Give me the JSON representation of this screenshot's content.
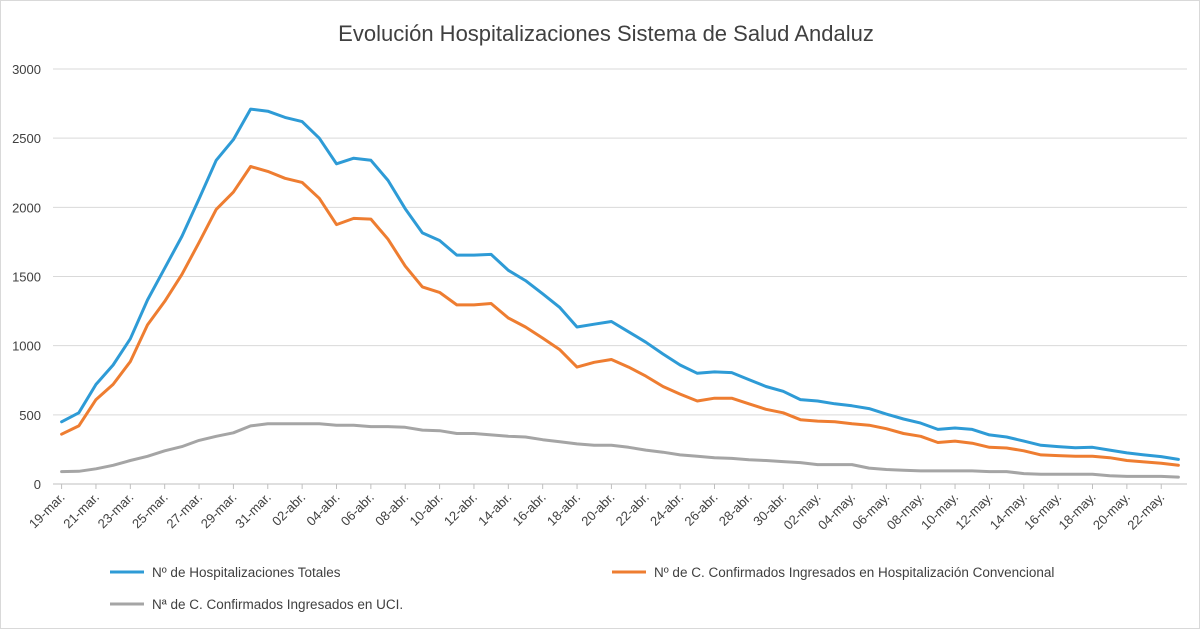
{
  "chart_data": {
    "type": "line",
    "title": "Evolución Hospitalizaciones Sistema de Salud Andaluz",
    "xlabel": "",
    "ylabel": "",
    "ylim": [
      0,
      3000
    ],
    "yticks": [
      0,
      500,
      1000,
      1500,
      2000,
      2500,
      3000
    ],
    "grid": "horizontal",
    "legend_position": "bottom",
    "x": [
      "19-mar.",
      "20-mar.",
      "21-mar.",
      "22-mar.",
      "23-mar.",
      "24-mar.",
      "25-mar.",
      "26-mar.",
      "27-mar.",
      "28-mar.",
      "29-mar.",
      "30-mar.",
      "31-mar.",
      "01-abr.",
      "02-abr.",
      "03-abr.",
      "04-abr.",
      "05-abr.",
      "06-abr.",
      "07-abr.",
      "08-abr.",
      "09-abr.",
      "10-abr.",
      "11-abr.",
      "12-abr.",
      "13-abr.",
      "14-abr.",
      "15-abr.",
      "16-abr.",
      "17-abr.",
      "18-abr.",
      "19-abr.",
      "20-abr.",
      "21-abr.",
      "22-abr.",
      "23-abr.",
      "24-abr.",
      "25-abr.",
      "26-abr.",
      "27-abr.",
      "28-abr.",
      "29-abr.",
      "30-abr.",
      "01-may.",
      "02-may.",
      "03-may.",
      "04-may.",
      "05-may.",
      "06-may.",
      "07-may.",
      "08-may.",
      "09-may.",
      "10-may.",
      "11-may.",
      "12-may.",
      "13-may.",
      "14-may.",
      "15-may.",
      "16-may.",
      "17-may.",
      "18-may.",
      "19-may.",
      "20-may.",
      "21-may.",
      "22-may.",
      "23-may."
    ],
    "xtick_labels": [
      "19-mar.",
      "21-mar.",
      "23-mar.",
      "25-mar.",
      "27-mar.",
      "29-mar.",
      "31-mar.",
      "02-abr.",
      "04-abr.",
      "06-abr.",
      "08-abr.",
      "10-abr.",
      "12-abr.",
      "14-abr.",
      "16-abr.",
      "18-abr.",
      "20-abr.",
      "22-abr.",
      "24-abr.",
      "26-abr.",
      "28-abr.",
      "30-abr.",
      "02-may.",
      "04-may.",
      "06-may.",
      "08-may.",
      "10-may.",
      "12-may.",
      "14-may.",
      "16-may.",
      "18-may.",
      "20-may.",
      "22-may."
    ],
    "series": [
      {
        "name": "Nº de Hospitalizaciones Totales",
        "color": "#2e9bd6",
        "values": [
          450,
          515,
          720,
          860,
          1050,
          1330,
          1560,
          1790,
          2060,
          2340,
          2490,
          2710,
          2695,
          2650,
          2620,
          2500,
          2315,
          2355,
          2340,
          2195,
          1990,
          1815,
          1760,
          1655,
          1655,
          1660,
          1545,
          1470,
          1375,
          1275,
          1135,
          1155,
          1175,
          1100,
          1025,
          940,
          860,
          800,
          810,
          805,
          755,
          705,
          670,
          610,
          600,
          580,
          565,
          545,
          505,
          470,
          440,
          395,
          405,
          395,
          355,
          340,
          310,
          280,
          270,
          262,
          265,
          245,
          225,
          210,
          198,
          178
        ]
      },
      {
        "name": "Nº de C. Confirmados Ingresados en Hospitalización Convencional",
        "color": "#ee7d31",
        "values": [
          360,
          420,
          610,
          720,
          885,
          1150,
          1320,
          1515,
          1745,
          1985,
          2110,
          2295,
          2260,
          2210,
          2180,
          2065,
          1875,
          1920,
          1915,
          1770,
          1575,
          1425,
          1385,
          1295,
          1295,
          1305,
          1200,
          1135,
          1055,
          970,
          845,
          880,
          900,
          845,
          780,
          705,
          650,
          600,
          620,
          620,
          580,
          540,
          515,
          465,
          455,
          450,
          435,
          425,
          400,
          365,
          345,
          300,
          310,
          295,
          265,
          260,
          240,
          210,
          205,
          200,
          200,
          190,
          170,
          160,
          150,
          135
        ]
      },
      {
        "name": "Nª de C. Confirmados Ingresados en UCI.",
        "color": "#a5a5a5",
        "values": [
          90,
          92,
          110,
          135,
          170,
          200,
          240,
          270,
          315,
          345,
          370,
          420,
          435,
          435,
          435,
          435,
          425,
          425,
          415,
          415,
          410,
          390,
          385,
          365,
          365,
          355,
          345,
          340,
          320,
          305,
          290,
          280,
          280,
          265,
          245,
          230,
          210,
          200,
          190,
          185,
          175,
          170,
          162,
          155,
          140,
          140,
          140,
          115,
          105,
          100,
          95,
          95,
          95,
          95,
          90,
          90,
          75,
          70,
          70,
          70,
          70,
          60,
          55,
          55,
          55,
          50
        ]
      }
    ]
  }
}
